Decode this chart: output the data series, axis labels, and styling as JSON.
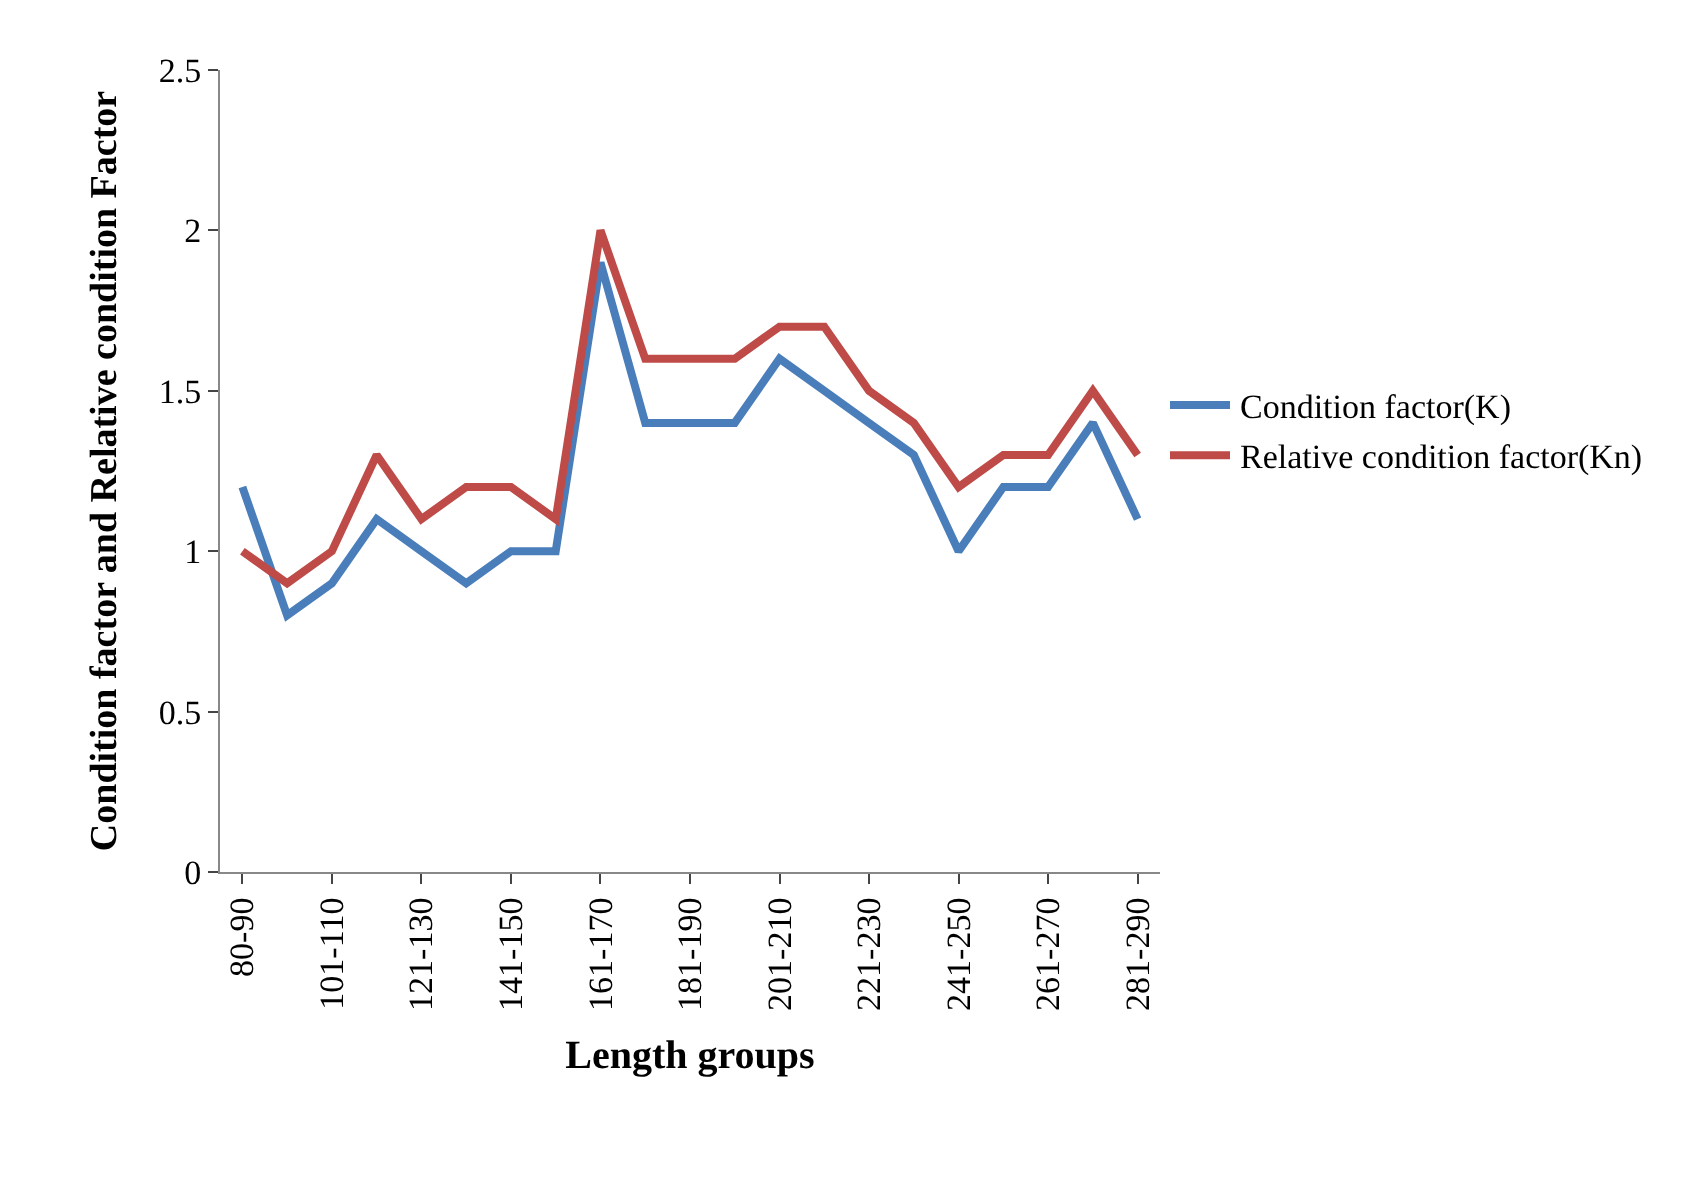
{
  "chart_data": {
    "type": "line",
    "xlabel": "Length groups",
    "ylabel": "Condition factor and Relative condition Factor",
    "categories": [
      "80-90",
      null,
      "101-110",
      null,
      "121-130",
      null,
      "141-150",
      null,
      "161-170",
      null,
      "181-190",
      null,
      "201-210",
      null,
      "221-230",
      null,
      "241-250",
      null,
      "261-270",
      null,
      "281-290"
    ],
    "series": [
      {
        "name": "Condition factor(K)",
        "color": "#4a7ebb",
        "values": [
          1.2,
          0.8,
          0.9,
          1.1,
          1.0,
          0.9,
          1.0,
          1.0,
          1.9,
          1.4,
          1.4,
          1.4,
          1.6,
          1.5,
          1.4,
          1.3,
          1.0,
          1.2,
          1.2,
          1.4,
          1.1
        ]
      },
      {
        "name": "Relative condition factor(Kn)",
        "color": "#be4b48",
        "values": [
          1.0,
          0.9,
          1.0,
          1.3,
          1.1,
          1.2,
          1.2,
          1.1,
          2.0,
          1.6,
          1.6,
          1.6,
          1.7,
          1.7,
          1.5,
          1.4,
          1.2,
          1.3,
          1.3,
          1.5,
          1.3
        ]
      }
    ],
    "ylim": [
      0,
      2.5
    ],
    "yticks": [
      0,
      0.5,
      1,
      1.5,
      2,
      2.5
    ],
    "grid": false,
    "legend": "right",
    "marker": "none",
    "line_style": "solid"
  }
}
